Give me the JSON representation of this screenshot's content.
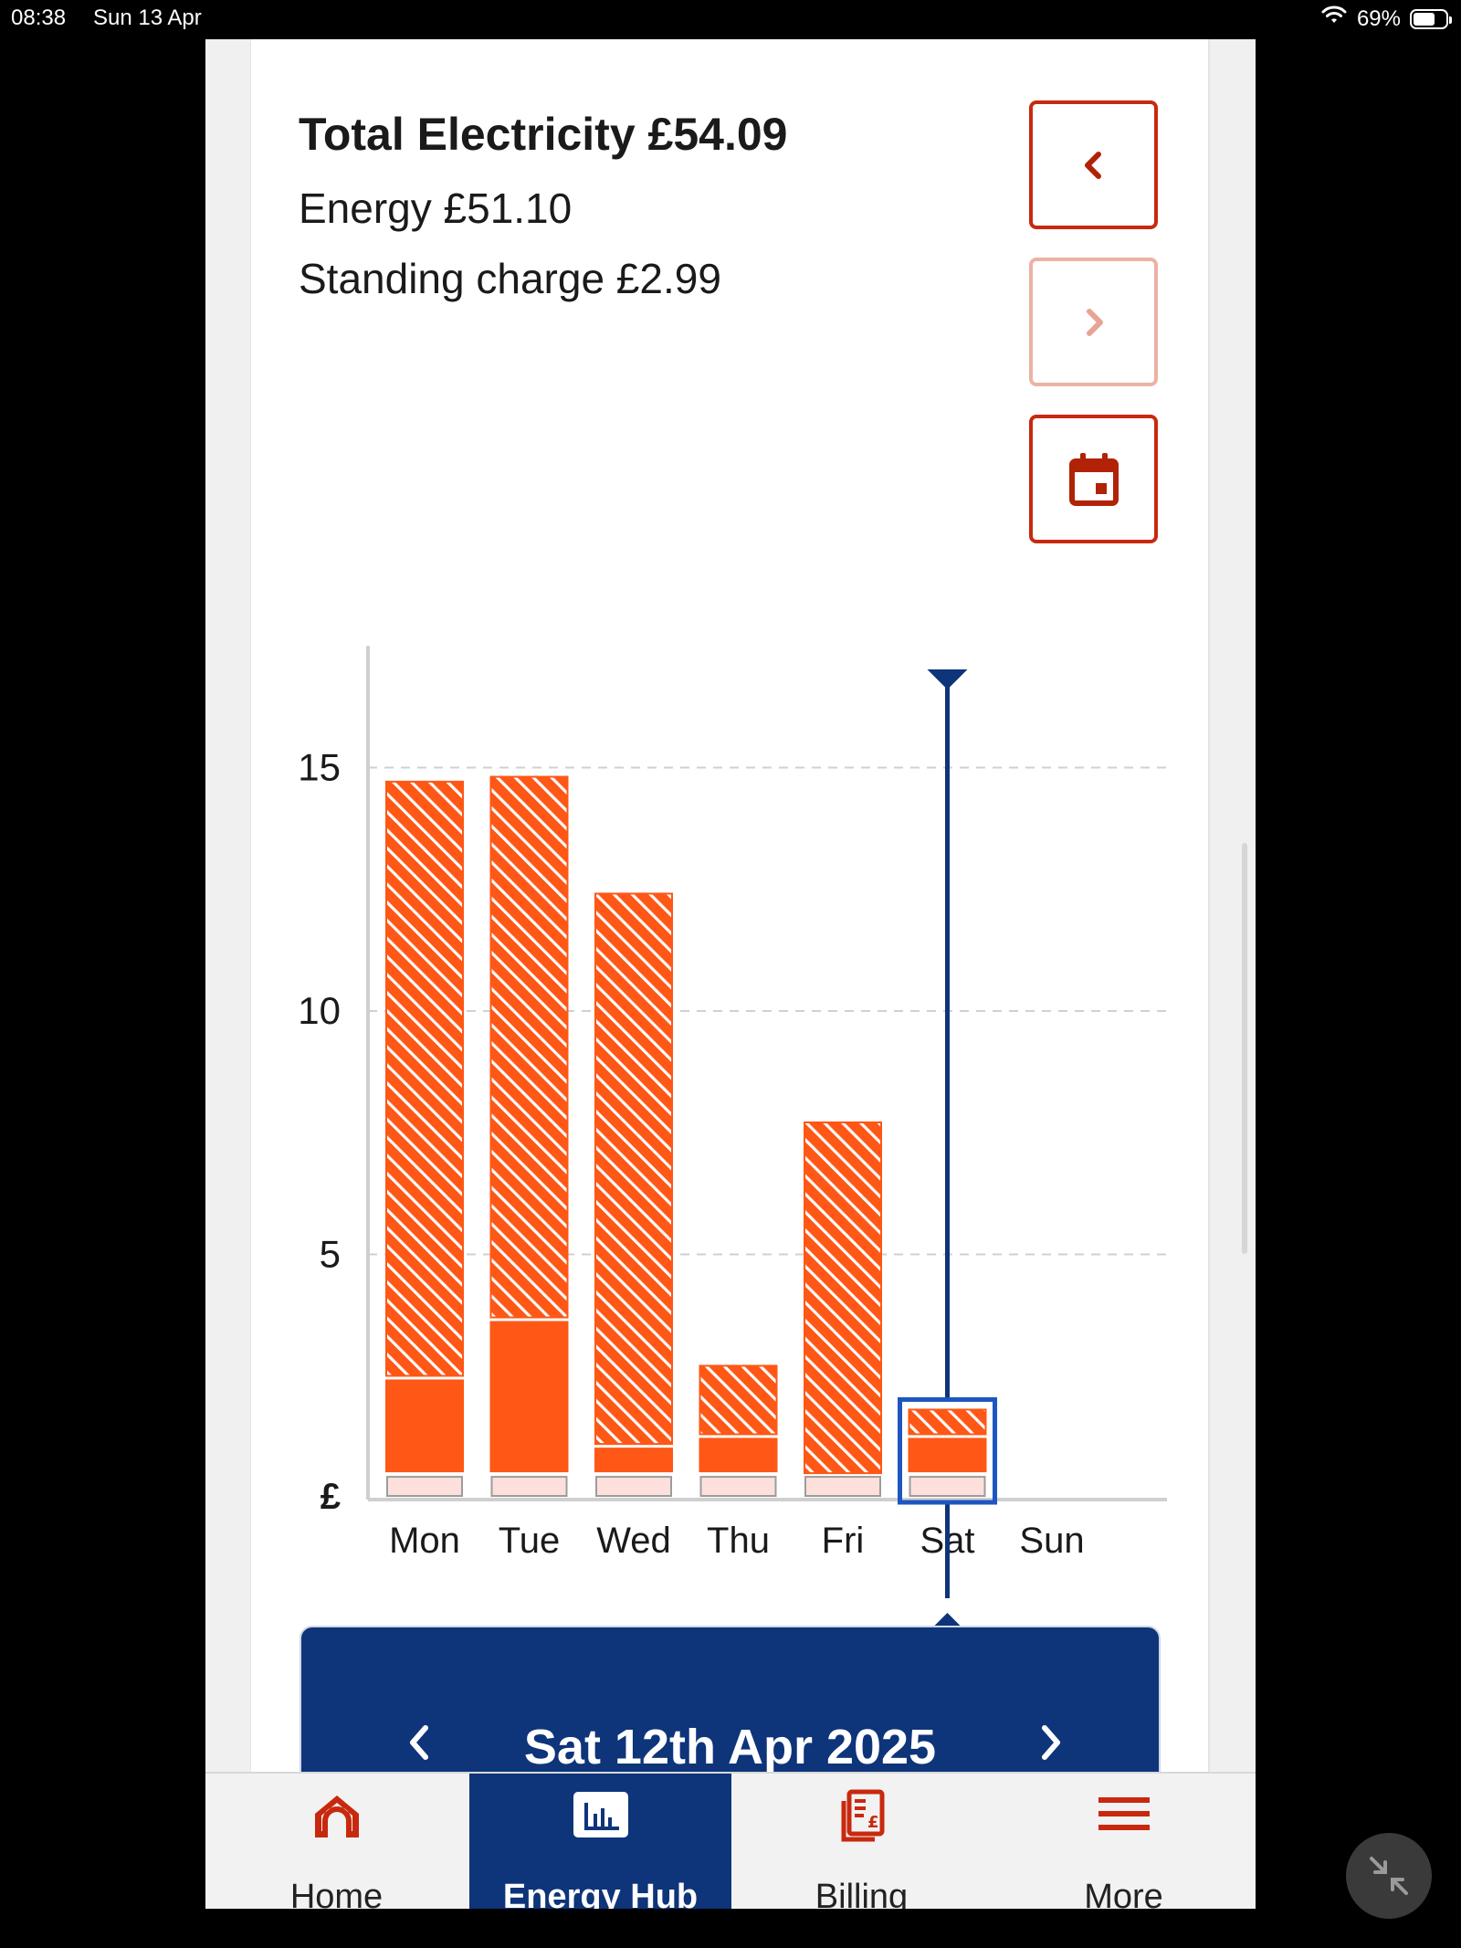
{
  "status_bar": {
    "time": "08:38",
    "date": "Sun 13 Apr",
    "battery": "69%",
    "battery_level": 0.69
  },
  "summary": {
    "title": "Total Electricity £54.09",
    "energy": "Energy £51.10",
    "standing_charge": "Standing charge £2.99"
  },
  "icons": {
    "prev": "chevron-left-icon",
    "next": "chevron-right-icon",
    "calendar": "calendar-icon",
    "home": "home-icon",
    "energy_hub": "bar-chart-icon",
    "billing": "bill-icon",
    "more": "menu-icon",
    "minimize": "minimize-arrows-icon"
  },
  "colors": {
    "accent": "#c8290e",
    "bar": "#fe5716",
    "standing": "#fde0dc",
    "navy": "#0e347a",
    "selection": "#1d56c0"
  },
  "chart_data": {
    "type": "bar",
    "stacked": true,
    "y_unit_label": "£",
    "categories": [
      "Mon",
      "Tue",
      "Wed",
      "Thu",
      "Fri",
      "Sat",
      "Sun"
    ],
    "ylim": [
      0,
      17.5
    ],
    "yticks": [
      15,
      10,
      5
    ],
    "grid": "dashed horizontal",
    "series": [
      {
        "pattern": "standing",
        "values": [
          0.43,
          0.43,
          0.43,
          0.43,
          0.43,
          0.43,
          null
        ]
      },
      {
        "pattern": "solid",
        "values": [
          2.0,
          3.2,
          0.6,
          0.8,
          0,
          0.8,
          null
        ]
      },
      {
        "pattern": "hatched",
        "values": [
          12.3,
          11.2,
          11.4,
          1.5,
          7.3,
          0.6,
          null
        ]
      }
    ],
    "selected": "Sat"
  },
  "selected_date": "Sat 12th Apr 2025",
  "tabs": [
    {
      "label": "Home",
      "active": false
    },
    {
      "label": "Energy Hub",
      "active": true
    },
    {
      "label": "Billing",
      "active": false
    },
    {
      "label": "More",
      "active": false
    }
  ]
}
